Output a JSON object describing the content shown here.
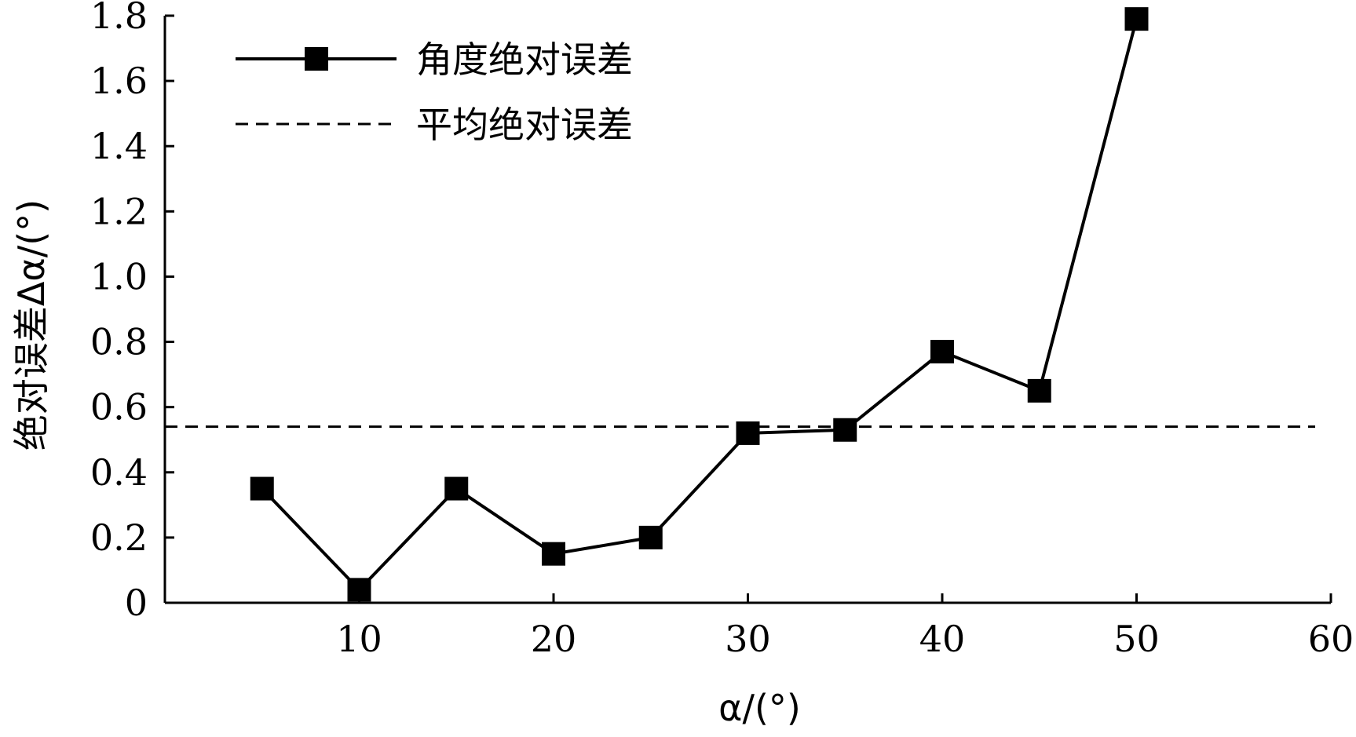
{
  "chart_data": {
    "type": "line",
    "title": "",
    "xlabel": "α/(°)",
    "ylabel": "绝对误差Δα/(°)",
    "xlim": [
      0,
      60
    ],
    "ylim": [
      0,
      1.8
    ],
    "x_ticks": [
      10,
      20,
      30,
      40,
      50,
      60
    ],
    "y_ticks": [
      0,
      0.2,
      0.4,
      0.6,
      0.8,
      1.0,
      1.2,
      1.4,
      1.6,
      1.8
    ],
    "x_tick_labels": [
      "10",
      "20",
      "30",
      "40",
      "50",
      "60"
    ],
    "y_tick_labels": [
      "0",
      "0.2",
      "0.4",
      "0.6",
      "0.8",
      "1.0",
      "1.2",
      "1.4",
      "1.6",
      "1.8"
    ],
    "grid": false,
    "legend_position": "top-left",
    "series": [
      {
        "name": "角度绝对误差",
        "style": "solid line with square markers",
        "color": "#000000",
        "x": [
          5,
          10,
          15,
          20,
          25,
          30,
          35,
          40,
          45,
          50
        ],
        "y": [
          0.35,
          0.04,
          0.35,
          0.15,
          0.2,
          0.52,
          0.53,
          0.77,
          0.65,
          1.79
        ]
      },
      {
        "name": "平均绝对误差",
        "style": "dashed line",
        "color": "#000000",
        "constant_y": 0.54
      }
    ]
  }
}
